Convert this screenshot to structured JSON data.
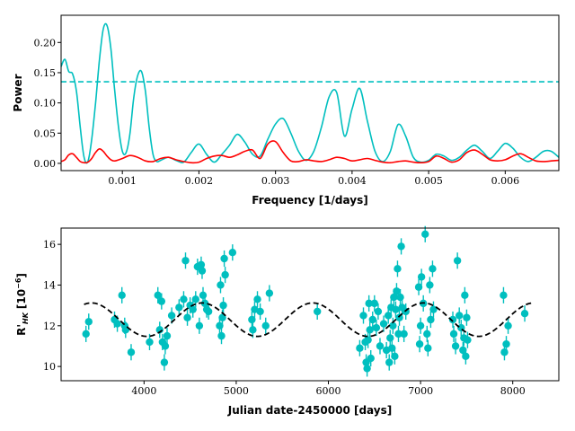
{
  "chart_data": [
    {
      "type": "line",
      "xlabel": "Frequency [1/days]",
      "ylabel": "Power",
      "xlim": [
        0.0002,
        0.0067
      ],
      "ylim": [
        -0.012,
        0.245
      ],
      "xticks": [
        0.001,
        0.002,
        0.003,
        0.004,
        0.005,
        0.006
      ],
      "xtick_labels": [
        "0.001",
        "0.002",
        "0.003",
        "0.004",
        "0.005",
        "0.006"
      ],
      "yticks": [
        0.0,
        0.05,
        0.1,
        0.15,
        0.2
      ],
      "ytick_labels": [
        "0.00",
        "0.05",
        "0.10",
        "0.15",
        "0.20"
      ],
      "threshold": {
        "y": 0.135,
        "color": "#00bfbf",
        "style": "dashed"
      },
      "series": [
        {
          "color": "#00bfbf",
          "x": [
            0.0002,
            0.00025,
            0.0003,
            0.00035,
            0.0004,
            0.00045,
            0.0005,
            0.00055,
            0.0006,
            0.00065,
            0.0007,
            0.00075,
            0.0008,
            0.00085,
            0.0009,
            0.00095,
            0.001,
            0.00105,
            0.0011,
            0.00115,
            0.0012,
            0.00125,
            0.0013,
            0.00135,
            0.0014,
            0.00145,
            0.0015,
            0.0016,
            0.0017,
            0.0018,
            0.0019,
            0.002,
            0.0021,
            0.0022,
            0.0023,
            0.0024,
            0.0025,
            0.0026,
            0.0027,
            0.0028,
            0.0029,
            0.003,
            0.0031,
            0.0032,
            0.0033,
            0.0034,
            0.0035,
            0.0036,
            0.0037,
            0.0038,
            0.0039,
            0.004,
            0.0041,
            0.0042,
            0.0043,
            0.0044,
            0.0045,
            0.0046,
            0.0047,
            0.0048,
            0.0049,
            0.005,
            0.0051,
            0.0052,
            0.0053,
            0.0054,
            0.0055,
            0.0056,
            0.0057,
            0.0058,
            0.0059,
            0.006,
            0.0061,
            0.0062,
            0.0063,
            0.0064,
            0.0065,
            0.0066,
            0.0067
          ],
          "y": [
            0.16,
            0.172,
            0.152,
            0.148,
            0.12,
            0.06,
            0.01,
            0.003,
            0.04,
            0.1,
            0.17,
            0.222,
            0.228,
            0.19,
            0.12,
            0.06,
            0.02,
            0.018,
            0.05,
            0.11,
            0.145,
            0.152,
            0.12,
            0.06,
            0.015,
            0.003,
            0.005,
            0.01,
            0.005,
            0.002,
            0.018,
            0.032,
            0.015,
            0.002,
            0.015,
            0.03,
            0.048,
            0.035,
            0.015,
            0.012,
            0.04,
            0.065,
            0.074,
            0.05,
            0.02,
            0.005,
            0.02,
            0.06,
            0.11,
            0.117,
            0.045,
            0.09,
            0.124,
            0.07,
            0.02,
            0.003,
            0.02,
            0.064,
            0.045,
            0.01,
            0.002,
            0.005,
            0.015,
            0.012,
            0.005,
            0.01,
            0.022,
            0.03,
            0.02,
            0.008,
            0.02,
            0.033,
            0.025,
            0.01,
            0.003,
            0.01,
            0.02,
            0.02,
            0.01
          ]
        },
        {
          "color": "#ff0000",
          "x": [
            0.0002,
            0.00025,
            0.0003,
            0.00035,
            0.0004,
            0.00045,
            0.0005,
            0.00055,
            0.0006,
            0.00065,
            0.0007,
            0.00075,
            0.0008,
            0.00085,
            0.0009,
            0.001,
            0.0011,
            0.0012,
            0.0013,
            0.0014,
            0.0015,
            0.0016,
            0.0017,
            0.0018,
            0.0019,
            0.002,
            0.0021,
            0.0022,
            0.0023,
            0.0024,
            0.0025,
            0.0026,
            0.0027,
            0.0028,
            0.0029,
            0.003,
            0.0031,
            0.0032,
            0.0033,
            0.0034,
            0.0035,
            0.0036,
            0.0037,
            0.0038,
            0.0039,
            0.004,
            0.0041,
            0.0042,
            0.0043,
            0.0044,
            0.0045,
            0.0046,
            0.0047,
            0.0048,
            0.0049,
            0.005,
            0.0051,
            0.0052,
            0.0053,
            0.0054,
            0.0055,
            0.0056,
            0.0057,
            0.0058,
            0.0059,
            0.006,
            0.0061,
            0.0062,
            0.0063,
            0.0064,
            0.0065,
            0.0066,
            0.0067
          ],
          "y": [
            0.003,
            0.006,
            0.014,
            0.016,
            0.01,
            0.003,
            0.001,
            0.002,
            0.008,
            0.018,
            0.024,
            0.02,
            0.012,
            0.006,
            0.004,
            0.008,
            0.013,
            0.01,
            0.004,
            0.003,
            0.008,
            0.01,
            0.006,
            0.003,
            0.001,
            0.002,
            0.008,
            0.012,
            0.013,
            0.01,
            0.014,
            0.02,
            0.022,
            0.008,
            0.032,
            0.036,
            0.018,
            0.004,
            0.003,
            0.006,
            0.004,
            0.003,
            0.006,
            0.01,
            0.008,
            0.004,
            0.006,
            0.008,
            0.005,
            0.002,
            0.001,
            0.003,
            0.004,
            0.002,
            0.001,
            0.003,
            0.012,
            0.008,
            0.002,
            0.006,
            0.018,
            0.022,
            0.015,
            0.006,
            0.004,
            0.006,
            0.012,
            0.016,
            0.01,
            0.004,
            0.003,
            0.004,
            0.005
          ]
        }
      ]
    },
    {
      "type": "scatter",
      "xlabel": "Julian date-2450000 [days]",
      "ylabel": "R'HK [10^-6]",
      "ylabel_main": "R'",
      "ylabel_sub": "HK",
      "ylabel_unit": "[10",
      "ylabel_exp": "−6",
      "ylabel_close": "]",
      "xlim": [
        3100,
        8500
      ],
      "ylim": [
        9.3,
        16.8
      ],
      "xticks": [
        4000,
        5000,
        6000,
        7000,
        8000
      ],
      "xtick_labels": [
        "4000",
        "5000",
        "6000",
        "7000",
        "8000"
      ],
      "yticks": [
        10,
        12,
        14,
        16
      ],
      "ytick_labels": [
        "10",
        "12",
        "14",
        "16"
      ],
      "marker_color": "#00bfbf",
      "model": {
        "style": "dashed",
        "color": "#000000",
        "mean": 12.3,
        "amplitude": 0.82,
        "period": 1200,
        "phase_date": 4630,
        "x_start": 3350,
        "x_end": 8200
      },
      "points": [
        [
          3370,
          11.6,
          0.4
        ],
        [
          3400,
          12.2,
          0.4
        ],
        [
          3680,
          12.3,
          0.4
        ],
        [
          3710,
          12.1,
          0.4
        ],
        [
          3760,
          13.5,
          0.4
        ],
        [
          3790,
          12.0,
          0.4
        ],
        [
          3800,
          11.8,
          0.4
        ],
        [
          3860,
          10.7,
          0.4
        ],
        [
          4060,
          11.2,
          0.4
        ],
        [
          4150,
          13.5,
          0.4
        ],
        [
          4170,
          11.8,
          0.4
        ],
        [
          4190,
          13.2,
          0.4
        ],
        [
          4200,
          11.2,
          0.4
        ],
        [
          4220,
          10.2,
          0.4
        ],
        [
          4230,
          11.0,
          0.4
        ],
        [
          4250,
          11.5,
          0.4
        ],
        [
          4300,
          12.5,
          0.4
        ],
        [
          4380,
          12.9,
          0.4
        ],
        [
          4430,
          13.3,
          0.4
        ],
        [
          4450,
          15.2,
          0.4
        ],
        [
          4470,
          12.4,
          0.4
        ],
        [
          4500,
          13.0,
          0.4
        ],
        [
          4530,
          12.8,
          0.4
        ],
        [
          4560,
          13.3,
          0.4
        ],
        [
          4580,
          14.9,
          0.4
        ],
        [
          4600,
          12.0,
          0.4
        ],
        [
          4620,
          15.0,
          0.4
        ],
        [
          4630,
          14.7,
          0.4
        ],
        [
          4640,
          13.5,
          0.4
        ],
        [
          4660,
          13.1,
          0.4
        ],
        [
          4680,
          12.8,
          0.4
        ],
        [
          4700,
          12.7,
          0.4
        ],
        [
          4820,
          12.0,
          0.4
        ],
        [
          4830,
          14.0,
          0.4
        ],
        [
          4840,
          11.5,
          0.4
        ],
        [
          4850,
          12.4,
          0.4
        ],
        [
          4860,
          13.0,
          0.4
        ],
        [
          4870,
          15.3,
          0.4
        ],
        [
          4880,
          14.5,
          0.4
        ],
        [
          4960,
          15.6,
          0.4
        ],
        [
          5170,
          12.3,
          0.4
        ],
        [
          5180,
          11.8,
          0.4
        ],
        [
          5200,
          12.8,
          0.4
        ],
        [
          5230,
          13.3,
          0.4
        ],
        [
          5260,
          12.7,
          0.4
        ],
        [
          5320,
          12.0,
          0.4
        ],
        [
          5360,
          13.6,
          0.4
        ],
        [
          5880,
          12.7,
          0.4
        ],
        [
          6340,
          10.9,
          0.4
        ],
        [
          6380,
          12.5,
          0.4
        ],
        [
          6400,
          11.2,
          0.4
        ],
        [
          6410,
          10.2,
          0.4
        ],
        [
          6420,
          9.9,
          0.4
        ],
        [
          6430,
          11.3,
          0.4
        ],
        [
          6440,
          13.1,
          0.4
        ],
        [
          6450,
          11.8,
          0.4
        ],
        [
          6460,
          10.4,
          0.4
        ],
        [
          6480,
          12.3,
          0.4
        ],
        [
          6500,
          13.1,
          0.4
        ],
        [
          6520,
          11.9,
          0.4
        ],
        [
          6540,
          12.7,
          0.4
        ],
        [
          6560,
          11.0,
          0.4
        ],
        [
          6600,
          12.1,
          0.4
        ],
        [
          6630,
          10.8,
          0.4
        ],
        [
          6650,
          12.5,
          0.4
        ],
        [
          6660,
          10.2,
          0.4
        ],
        [
          6670,
          11.4,
          0.4
        ],
        [
          6680,
          12.9,
          0.4
        ],
        [
          6690,
          10.9,
          0.4
        ],
        [
          6700,
          12.0,
          0.4
        ],
        [
          6710,
          13.4,
          0.4
        ],
        [
          6720,
          10.5,
          0.4
        ],
        [
          6730,
          12.8,
          0.4
        ],
        [
          6740,
          13.7,
          0.4
        ],
        [
          6750,
          14.8,
          0.4
        ],
        [
          6760,
          11.6,
          0.4
        ],
        [
          6770,
          12.4,
          0.4
        ],
        [
          6780,
          13.4,
          0.4
        ],
        [
          6790,
          15.9,
          0.4
        ],
        [
          6800,
          12.9,
          0.4
        ],
        [
          6820,
          11.6,
          0.4
        ],
        [
          6840,
          12.7,
          0.4
        ],
        [
          6980,
          13.9,
          0.4
        ],
        [
          6990,
          11.1,
          0.4
        ],
        [
          7000,
          12.0,
          0.4
        ],
        [
          7010,
          14.4,
          0.4
        ],
        [
          7030,
          13.1,
          0.4
        ],
        [
          7050,
          16.5,
          0.4
        ],
        [
          7070,
          11.6,
          0.4
        ],
        [
          7080,
          10.9,
          0.4
        ],
        [
          7100,
          14.0,
          0.4
        ],
        [
          7110,
          12.3,
          0.4
        ],
        [
          7130,
          14.8,
          0.4
        ],
        [
          7140,
          12.8,
          0.4
        ],
        [
          7350,
          12.3,
          0.4
        ],
        [
          7360,
          11.6,
          0.4
        ],
        [
          7380,
          11.0,
          0.4
        ],
        [
          7400,
          15.2,
          0.4
        ],
        [
          7420,
          12.5,
          0.4
        ],
        [
          7440,
          11.9,
          0.4
        ],
        [
          7460,
          10.8,
          0.4
        ],
        [
          7470,
          11.4,
          0.4
        ],
        [
          7480,
          13.5,
          0.4
        ],
        [
          7490,
          10.5,
          0.4
        ],
        [
          7500,
          12.4,
          0.4
        ],
        [
          7510,
          11.3,
          0.4
        ],
        [
          7900,
          13.5,
          0.4
        ],
        [
          7910,
          10.7,
          0.4
        ],
        [
          7930,
          11.1,
          0.4
        ],
        [
          7950,
          12.0,
          0.4
        ],
        [
          8130,
          12.6,
          0.4
        ]
      ]
    }
  ]
}
